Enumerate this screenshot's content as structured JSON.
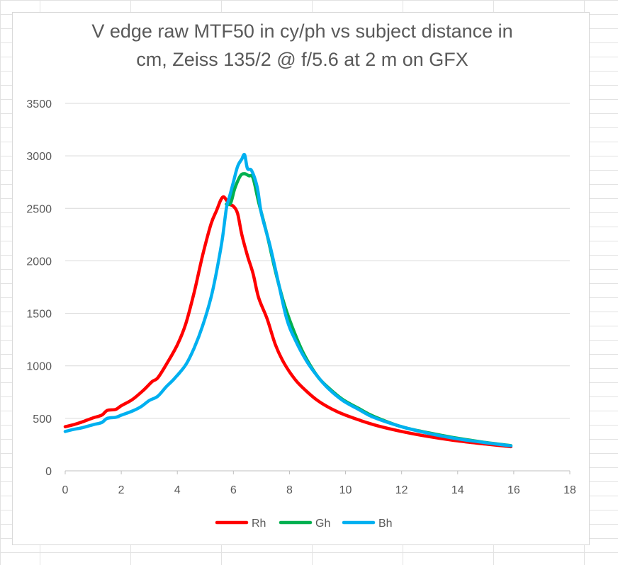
{
  "chart_data": {
    "type": "line",
    "title_lines": [
      "V edge raw MTF50 in cy/ph vs subject distance in",
      "cm, Zeiss 135/2 @ f/5.6 at 2 m on GFX"
    ],
    "xlabel": "",
    "ylabel": "",
    "xlim": [
      0,
      18
    ],
    "ylim": [
      0,
      3500
    ],
    "x_ticks": [
      "0",
      "2",
      "4",
      "6",
      "8",
      "10",
      "12",
      "14",
      "16",
      "18"
    ],
    "y_ticks": [
      "0",
      "500",
      "1000",
      "1500",
      "2000",
      "2500",
      "3000",
      "3500"
    ],
    "grid": "horizontal",
    "legend_position": "bottom",
    "series": [
      {
        "name": "Rh",
        "color": "#ff0000",
        "points": [
          [
            0,
            420
          ],
          [
            0.3,
            440
          ],
          [
            0.6,
            465
          ],
          [
            1.0,
            505
          ],
          [
            1.3,
            530
          ],
          [
            1.5,
            575
          ],
          [
            1.8,
            585
          ],
          [
            2.0,
            620
          ],
          [
            2.4,
            680
          ],
          [
            2.8,
            770
          ],
          [
            3.1,
            850
          ],
          [
            3.3,
            885
          ],
          [
            3.6,
            1010
          ],
          [
            4.0,
            1200
          ],
          [
            4.3,
            1400
          ],
          [
            4.6,
            1700
          ],
          [
            4.9,
            2050
          ],
          [
            5.2,
            2350
          ],
          [
            5.4,
            2480
          ],
          [
            5.55,
            2580
          ],
          [
            5.65,
            2610
          ],
          [
            5.75,
            2580
          ],
          [
            5.85,
            2540
          ],
          [
            6.0,
            2520
          ],
          [
            6.15,
            2450
          ],
          [
            6.3,
            2250
          ],
          [
            6.5,
            2050
          ],
          [
            6.7,
            1880
          ],
          [
            6.9,
            1650
          ],
          [
            7.2,
            1450
          ],
          [
            7.5,
            1200
          ],
          [
            7.8,
            1030
          ],
          [
            8.2,
            870
          ],
          [
            8.6,
            760
          ],
          [
            9.0,
            670
          ],
          [
            9.5,
            590
          ],
          [
            10.0,
            530
          ],
          [
            11.0,
            440
          ],
          [
            12.0,
            375
          ],
          [
            13.0,
            325
          ],
          [
            14.0,
            285
          ],
          [
            15.0,
            255
          ],
          [
            15.9,
            230
          ]
        ]
      },
      {
        "name": "Gh",
        "color": "#00b050",
        "points": [
          [
            5.75,
            2540
          ],
          [
            5.9,
            2550
          ],
          [
            6.05,
            2690
          ],
          [
            6.25,
            2810
          ],
          [
            6.4,
            2830
          ],
          [
            6.55,
            2810
          ],
          [
            6.7,
            2790
          ],
          [
            6.9,
            2560
          ],
          [
            7.2,
            2250
          ],
          [
            7.5,
            1900
          ],
          [
            7.8,
            1600
          ],
          [
            8.1,
            1370
          ],
          [
            8.5,
            1120
          ],
          [
            9.0,
            900
          ],
          [
            9.4,
            790
          ],
          [
            9.9,
            680
          ],
          [
            10.5,
            590
          ],
          [
            11.0,
            520
          ],
          [
            12.0,
            420
          ],
          [
            13.0,
            360
          ],
          [
            14.0,
            310
          ],
          [
            15.0,
            270
          ],
          [
            15.9,
            240
          ]
        ]
      },
      {
        "name": "Bh",
        "color": "#00b0f0",
        "points": [
          [
            0,
            375
          ],
          [
            0.3,
            395
          ],
          [
            0.6,
            410
          ],
          [
            1.0,
            440
          ],
          [
            1.3,
            460
          ],
          [
            1.5,
            500
          ],
          [
            1.8,
            510
          ],
          [
            2.0,
            530
          ],
          [
            2.4,
            570
          ],
          [
            2.7,
            610
          ],
          [
            3.0,
            670
          ],
          [
            3.3,
            710
          ],
          [
            3.6,
            800
          ],
          [
            3.9,
            880
          ],
          [
            4.3,
            1010
          ],
          [
            4.6,
            1170
          ],
          [
            4.9,
            1380
          ],
          [
            5.2,
            1650
          ],
          [
            5.4,
            1900
          ],
          [
            5.6,
            2200
          ],
          [
            5.75,
            2500
          ],
          [
            5.85,
            2600
          ],
          [
            6.0,
            2750
          ],
          [
            6.15,
            2900
          ],
          [
            6.3,
            2970
          ],
          [
            6.4,
            3010
          ],
          [
            6.5,
            2880
          ],
          [
            6.65,
            2860
          ],
          [
            6.85,
            2700
          ],
          [
            7.0,
            2450
          ],
          [
            7.3,
            2150
          ],
          [
            7.6,
            1800
          ],
          [
            7.9,
            1450
          ],
          [
            8.2,
            1250
          ],
          [
            8.6,
            1050
          ],
          [
            9.0,
            900
          ],
          [
            9.4,
            780
          ],
          [
            9.9,
            670
          ],
          [
            10.5,
            580
          ],
          [
            11.0,
            510
          ],
          [
            12.0,
            420
          ],
          [
            13.0,
            355
          ],
          [
            14.0,
            305
          ],
          [
            15.0,
            268
          ],
          [
            15.9,
            238
          ]
        ]
      }
    ]
  }
}
